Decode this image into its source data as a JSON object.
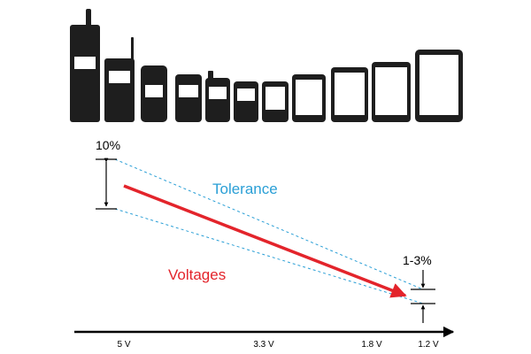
{
  "labels": {
    "tolerance_top": "10%",
    "tolerance_bottom": "1-3%",
    "tolerance": "Tolerance",
    "voltages": "Voltages"
  },
  "axis": {
    "ticks": [
      "5 V",
      "3.3 V",
      "1.8 V",
      "1.2 V"
    ]
  },
  "devices": [
    {
      "name": "brick-phone"
    },
    {
      "name": "candybar-phone-antenna"
    },
    {
      "name": "flip-phone"
    },
    {
      "name": "compact-phone"
    },
    {
      "name": "small-antenna-phone"
    },
    {
      "name": "mini-phone"
    },
    {
      "name": "square-phone"
    },
    {
      "name": "smartphone"
    },
    {
      "name": "large-smartphone"
    },
    {
      "name": "phablet"
    },
    {
      "name": "tablet"
    }
  ],
  "colors": {
    "device": "#1e1e1e",
    "arrow": "#e3242b",
    "tolerance": "#2a9fd6",
    "voltages_text": "#e3242b",
    "axis": "#000000"
  }
}
